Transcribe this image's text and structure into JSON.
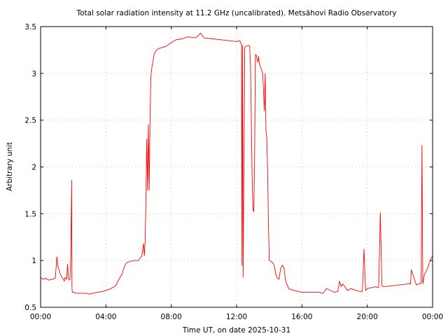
{
  "chart_data": {
    "type": "line",
    "title": "Total solar radiation intensity at 11.2 GHz (uncalibrated). Metsähovi Radio Observatory",
    "xlabel": "Time UT, on date 2025-10-31",
    "ylabel": "Arbitrary unit",
    "xlim": [
      0,
      24
    ],
    "ylim": [
      0.5,
      3.5
    ],
    "grid": true,
    "x_ticks": [
      {
        "value": 0,
        "label": "00:00"
      },
      {
        "value": 4,
        "label": "04:00"
      },
      {
        "value": 8,
        "label": "08:00"
      },
      {
        "value": 12,
        "label": "12:00"
      },
      {
        "value": 16,
        "label": "16:00"
      },
      {
        "value": 20,
        "label": "20:00"
      },
      {
        "value": 24,
        "label": "00:00"
      }
    ],
    "y_ticks": [
      {
        "value": 0.5,
        "label": "0.5"
      },
      {
        "value": 1,
        "label": "1"
      },
      {
        "value": 1.5,
        "label": "1.5"
      },
      {
        "value": 2,
        "label": "2"
      },
      {
        "value": 2.5,
        "label": "2.5"
      },
      {
        "value": 3,
        "label": "3"
      },
      {
        "value": 3.5,
        "label": "3.5"
      }
    ],
    "series": [
      {
        "color": "#ff0000",
        "x": [
          0.0,
          0.15,
          0.3,
          0.5,
          0.7,
          0.9,
          1.0,
          1.05,
          1.1,
          1.2,
          1.3,
          1.4,
          1.45,
          1.5,
          1.6,
          1.65,
          1.7,
          1.75,
          1.8,
          1.85,
          1.9,
          1.92,
          1.95,
          2.0,
          2.2,
          2.5,
          2.8,
          3.0,
          3.2,
          3.5,
          3.8,
          4.0,
          4.3,
          4.6,
          4.8,
          5.0,
          5.1,
          5.2,
          5.3,
          5.5,
          5.7,
          6.0,
          6.2,
          6.3,
          6.35,
          6.4,
          6.45,
          6.5,
          6.55,
          6.6,
          6.65,
          6.7,
          6.75,
          6.8,
          6.85,
          6.9,
          6.95,
          7.0,
          7.1,
          7.3,
          7.5,
          7.7,
          8.0,
          8.3,
          8.7,
          9.0,
          9.5,
          9.8,
          10.0,
          10.5,
          11.0,
          11.5,
          12.0,
          12.2,
          12.3,
          12.33,
          12.36,
          12.4,
          12.5,
          12.7,
          12.8,
          12.85,
          12.9,
          12.95,
          13.0,
          13.05,
          13.1,
          13.15,
          13.2,
          13.25,
          13.3,
          13.35,
          13.4,
          13.5,
          13.6,
          13.7,
          13.75,
          13.8,
          13.85,
          13.9,
          13.95,
          14.0,
          14.1,
          14.2,
          14.3,
          14.4,
          14.5,
          14.6,
          14.7,
          14.8,
          14.9,
          15.0,
          15.2,
          15.5,
          16.0,
          16.5,
          17.0,
          17.3,
          17.5,
          18.0,
          18.2,
          18.3,
          18.4,
          18.5,
          18.8,
          19.0,
          19.5,
          19.7,
          19.8,
          19.9,
          20.0,
          20.5,
          20.7,
          20.8,
          20.9,
          21.0,
          21.5,
          22.0,
          22.5,
          22.65,
          22.7,
          23.0,
          23.2,
          23.3,
          23.35,
          23.4,
          23.5,
          23.7,
          23.85,
          24.0
        ],
        "values": [
          0.82,
          0.8,
          0.81,
          0.79,
          0.8,
          0.81,
          1.04,
          0.95,
          0.92,
          0.86,
          0.82,
          0.8,
          0.78,
          0.82,
          0.8,
          0.96,
          0.82,
          0.79,
          0.8,
          1.05,
          1.86,
          0.7,
          0.66,
          0.66,
          0.65,
          0.65,
          0.65,
          0.64,
          0.65,
          0.66,
          0.67,
          0.68,
          0.7,
          0.73,
          0.8,
          0.86,
          0.92,
          0.96,
          0.98,
          0.99,
          1.0,
          1.0,
          1.05,
          1.18,
          1.05,
          1.2,
          1.65,
          2.3,
          1.75,
          2.45,
          1.75,
          2.5,
          2.95,
          3.05,
          3.1,
          3.15,
          3.2,
          3.22,
          3.25,
          3.27,
          3.28,
          3.29,
          3.33,
          3.36,
          3.37,
          3.39,
          3.38,
          3.43,
          3.38,
          3.37,
          3.36,
          3.35,
          3.34,
          3.35,
          3.3,
          0.95,
          3.3,
          0.82,
          3.28,
          3.3,
          3.29,
          3.1,
          2.5,
          1.9,
          1.55,
          1.52,
          2.0,
          3.2,
          3.2,
          3.15,
          3.12,
          3.18,
          3.1,
          3.05,
          3.0,
          2.6,
          3.0,
          2.38,
          2.3,
          1.95,
          1.4,
          1.0,
          0.99,
          0.98,
          0.95,
          0.85,
          0.81,
          0.8,
          0.92,
          0.95,
          0.92,
          0.78,
          0.7,
          0.68,
          0.66,
          0.66,
          0.66,
          0.65,
          0.7,
          0.66,
          0.67,
          0.78,
          0.72,
          0.75,
          0.68,
          0.7,
          0.67,
          0.67,
          1.12,
          0.68,
          0.7,
          0.72,
          0.71,
          1.51,
          0.73,
          0.72,
          0.73,
          0.74,
          0.75,
          0.75,
          0.9,
          0.74,
          0.75,
          0.76,
          2.23,
          0.75,
          0.85,
          0.92,
          1.0,
          1.05
        ],
        "name": ""
      }
    ]
  }
}
